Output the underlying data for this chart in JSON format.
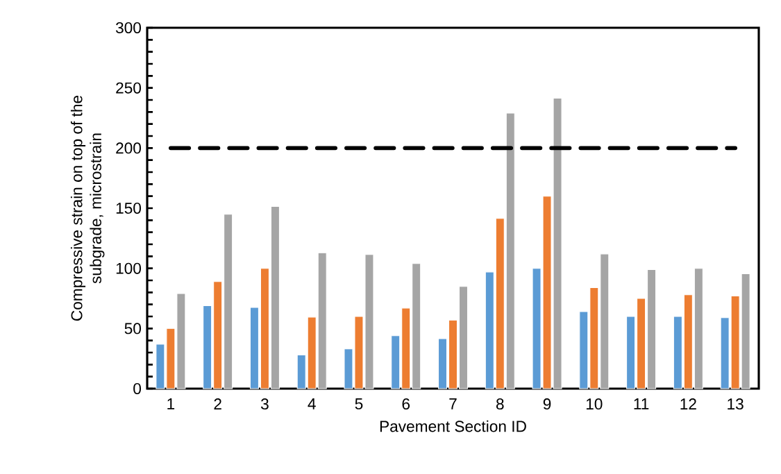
{
  "chart_data": {
    "type": "bar",
    "xlabel": "Pavement Section ID",
    "ylabel": "Compressive strain on top of the subgrade, microstrain",
    "categories": [
      "1",
      "2",
      "3",
      "4",
      "5",
      "6",
      "7",
      "8",
      "9",
      "10",
      "11",
      "12",
      "13"
    ],
    "series": [
      {
        "color": "#5b9bd5",
        "values": [
          37,
          69,
          67.5,
          28,
          33,
          44,
          41.5,
          97,
          100,
          64,
          60,
          60,
          59
        ]
      },
      {
        "color": "#ed7d31",
        "values": [
          50,
          89,
          100,
          59.5,
          60,
          67,
          57,
          141.5,
          160,
          84,
          75,
          78,
          77
        ]
      },
      {
        "color": "#a5a5a5",
        "values": [
          79,
          145,
          151.5,
          113,
          111.5,
          104,
          85,
          229,
          241.5,
          112,
          99,
          100,
          95.5
        ]
      }
    ],
    "ylim": [
      0,
      300
    ],
    "yticks": [
      0,
      {
        "value": 10,
        "label": null
      },
      {
        "value": 20,
        "label": null
      },
      {
        "value": 30,
        "label": null
      },
      {
        "value": 40,
        "label": null
      },
      50,
      {
        "value": 60,
        "label": null
      },
      {
        "value": 70,
        "label": null
      },
      {
        "value": 80,
        "label": null
      },
      {
        "value": 90,
        "label": null
      },
      100,
      {
        "value": 110,
        "label": null
      },
      {
        "value": 120,
        "label": null
      },
      {
        "value": 130,
        "label": null
      },
      {
        "value": 140,
        "label": null
      },
      150,
      {
        "value": 160,
        "label": null
      },
      {
        "value": 170,
        "label": null
      },
      {
        "value": 180,
        "label": null
      },
      {
        "value": 190,
        "label": null
      },
      200,
      {
        "value": 210,
        "label": null
      },
      {
        "value": 220,
        "label": null
      },
      {
        "value": 230,
        "label": null
      },
      {
        "value": 240,
        "label": null
      },
      250,
      {
        "value": 260,
        "label": null
      },
      {
        "value": 270,
        "label": null
      },
      {
        "value": 280,
        "label": null
      },
      {
        "value": 290,
        "label": null
      },
      300
    ],
    "ref_lines": [
      {
        "axis": "y",
        "value": 200,
        "color": "#000000",
        "line_style": "dashed"
      }
    ],
    "grid": false
  }
}
